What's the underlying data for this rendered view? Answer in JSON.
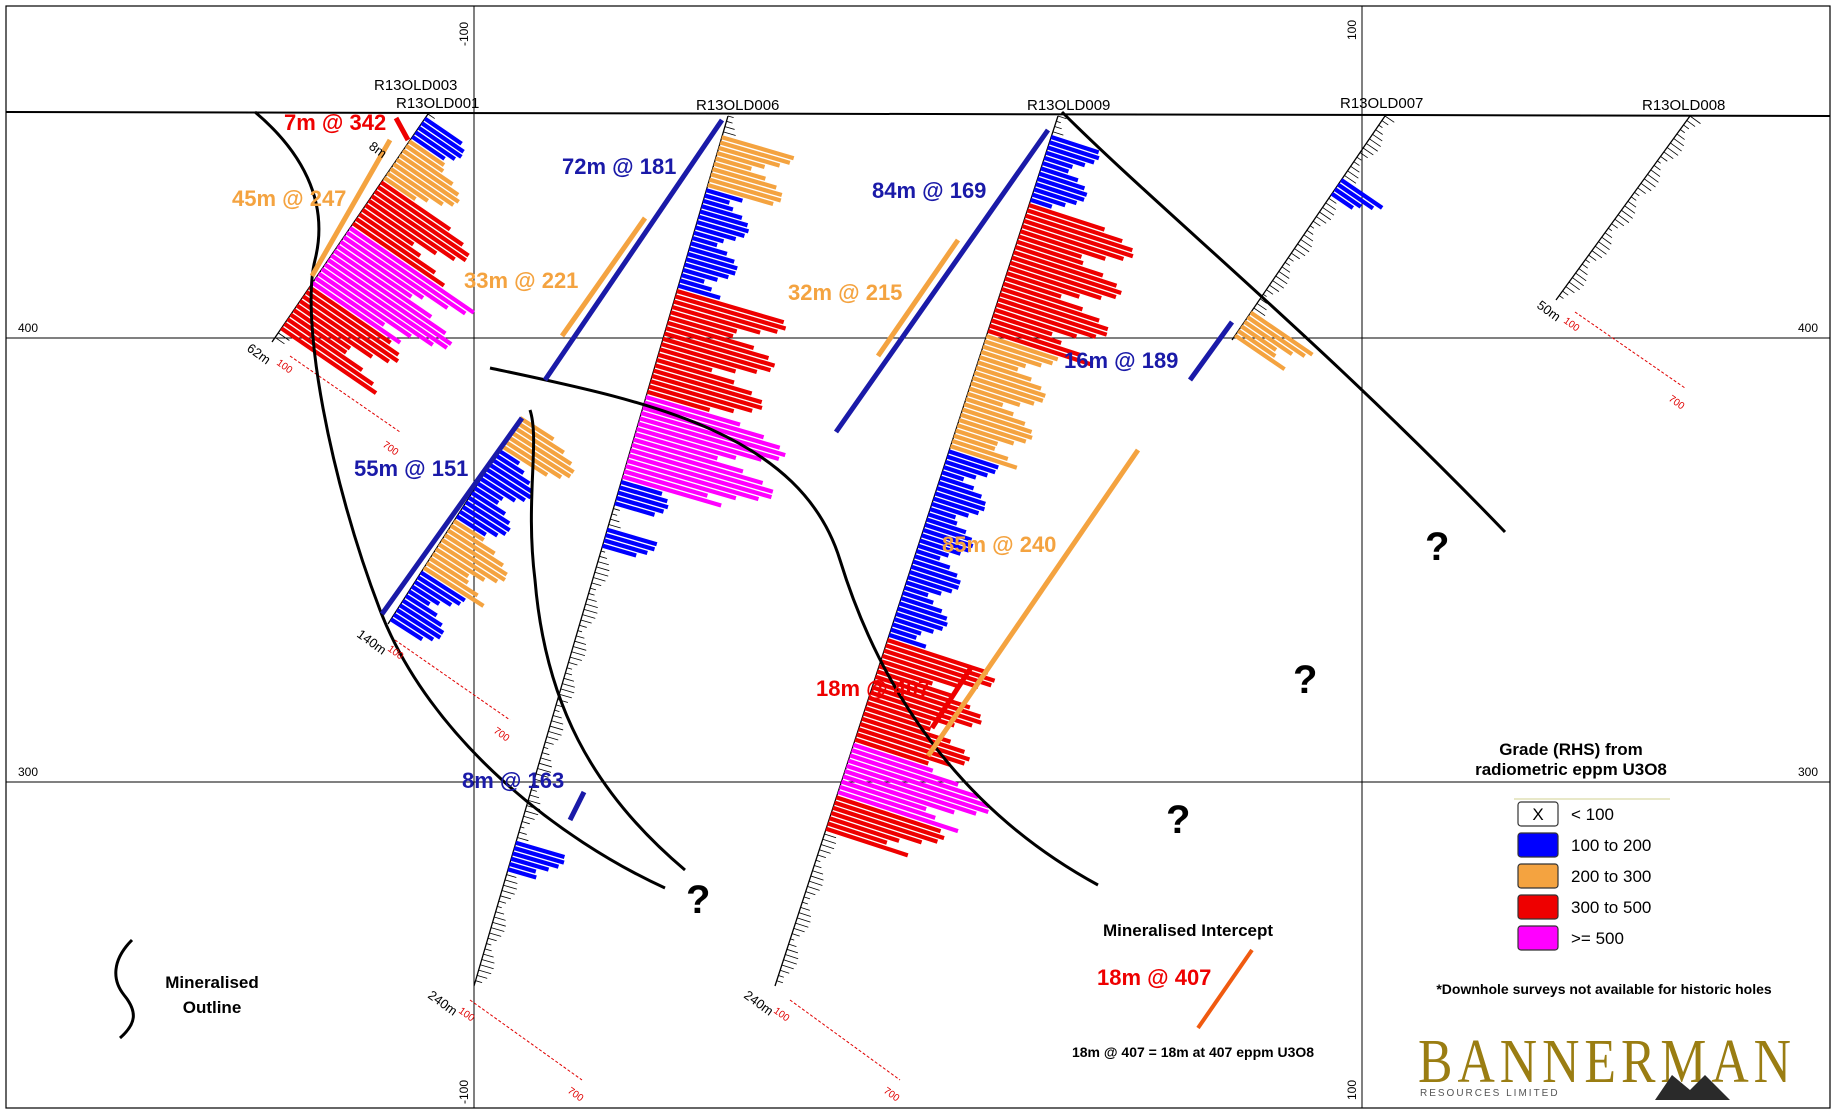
{
  "colors": {
    "lt100": "#ffffff",
    "c100_200": "#0000ff",
    "c200_300": "#f4a340",
    "c300_500": "#ee0000",
    "c500": "#ff00ff",
    "intercept_blue": "#1a1aa8",
    "intercept_orange": "#f4a340",
    "intercept_red": "#ee0000",
    "logo": "#9a7d12"
  },
  "grid": {
    "top_labels": [
      "-100",
      "100"
    ],
    "bottom_labels": [
      "-100",
      "100"
    ],
    "left_labels": [
      "400",
      "300"
    ],
    "right_labels": [
      "400",
      "300"
    ]
  },
  "holes": [
    {
      "id": "R13OLD003",
      "depth": "62m",
      "scale_low": "100",
      "scale_high": "700"
    },
    {
      "id": "R13OLD001",
      "depth": "140m",
      "scale_low": "100",
      "scale_high": "700"
    },
    {
      "id": "R13OLD006",
      "depth": "240m",
      "scale_low": "100",
      "scale_high": "700"
    },
    {
      "id": "R13OLD009",
      "depth": "240m",
      "scale_low": "100",
      "scale_high": "700"
    },
    {
      "id": "R13OLD007",
      "depth": "",
      "scale_low": "",
      "scale_high": ""
    },
    {
      "id": "R13OLD008",
      "depth": "50m",
      "scale_low": "100",
      "scale_high": "700"
    }
  ],
  "depth_tick_8m": "8m",
  "intercepts": [
    {
      "label": "7m @ 342",
      "color": "red"
    },
    {
      "label": "45m @ 247",
      "color": "orange"
    },
    {
      "label": "72m @ 181",
      "color": "blue"
    },
    {
      "label": "33m @ 221",
      "color": "orange"
    },
    {
      "label": "84m @ 169",
      "color": "blue"
    },
    {
      "label": "32m @ 215",
      "color": "orange"
    },
    {
      "label": "16m @ 189",
      "color": "blue"
    },
    {
      "label": "55m @ 151",
      "color": "blue"
    },
    {
      "label": "85m @ 240",
      "color": "orange"
    },
    {
      "label": "18m @ 407",
      "color": "red"
    },
    {
      "label": "8m @ 163",
      "color": "blue"
    }
  ],
  "question_mark": "?",
  "legend": {
    "title_line1": "Grade (RHS) from",
    "title_line2": "radiometric eppm U3O8",
    "items": [
      {
        "swatch_text": "X",
        "label": "< 100",
        "color": "lt100"
      },
      {
        "swatch_text": "",
        "label": "100 to 200",
        "color": "c100_200"
      },
      {
        "swatch_text": "",
        "label": "200 to 300",
        "color": "c200_300"
      },
      {
        "swatch_text": "",
        "label": "300 to 500",
        "color": "c300_500"
      },
      {
        "swatch_text": "",
        "label": ">= 500",
        "color": "c500"
      }
    ]
  },
  "outline_legend": {
    "line1": "Mineralised",
    "line2": "Outline"
  },
  "intercept_legend": {
    "title": "Mineralised Intercept",
    "example": "18m @ 407",
    "explanation": "18m @ 407 = 18m at 407 eppm U3O8"
  },
  "footnote": "*Downhole surveys not available for historic holes",
  "logo": {
    "name": "BANNERMAN",
    "tagline": "RESOURCES LIMITED"
  }
}
